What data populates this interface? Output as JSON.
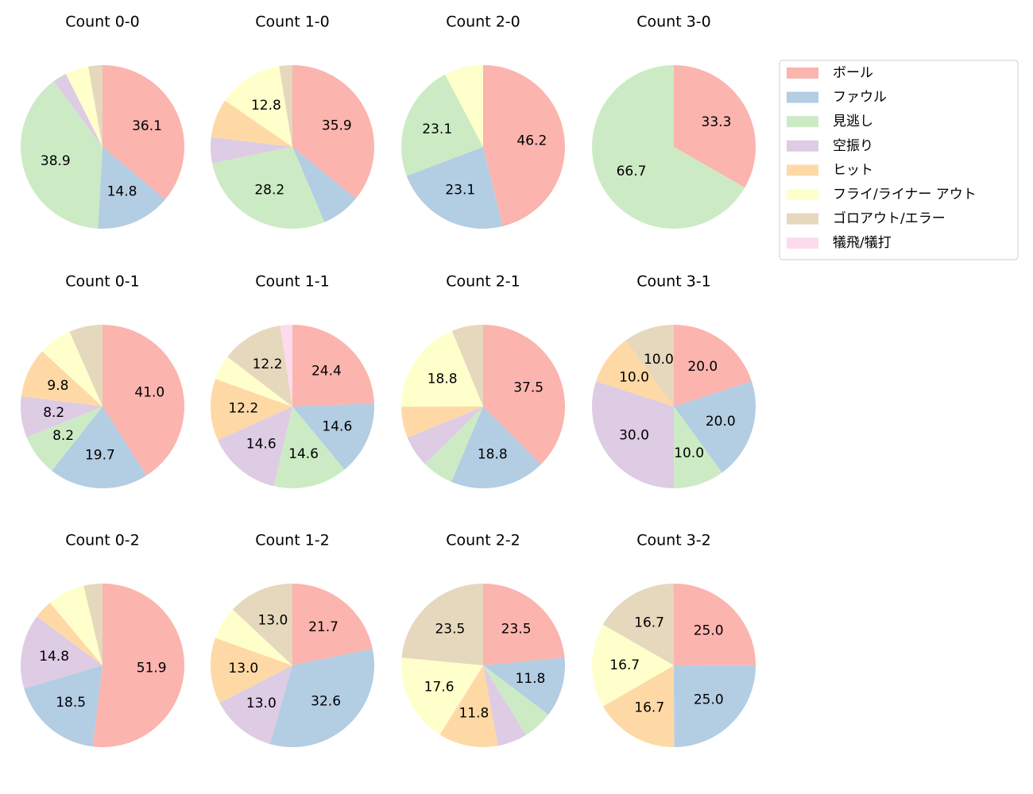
{
  "legend": {
    "labels": [
      "ボール",
      "ファウル",
      "見逃し",
      "空振り",
      "ヒット",
      "フライ/ライナー アウト",
      "ゴロアウト/エラー",
      "犠飛/犠打"
    ],
    "colors": [
      "#fbb4ae",
      "#b3cde3",
      "#ccebc5",
      "#decbe4",
      "#fed9a6",
      "#ffffcc",
      "#e5d8bd",
      "#fddaec"
    ]
  },
  "chart_data": [
    {
      "type": "pie",
      "title": "Count 0-0",
      "values": [
        36.1,
        14.8,
        38.9,
        2.8,
        0,
        4.6,
        2.8,
        0
      ],
      "value_labels": [
        "36.1",
        "14.8",
        "38.9",
        null,
        null,
        null,
        null,
        null
      ]
    },
    {
      "type": "pie",
      "title": "Count 1-0",
      "values": [
        35.9,
        7.7,
        28.2,
        5.1,
        7.7,
        12.8,
        2.6,
        0
      ],
      "value_labels": [
        "35.9",
        null,
        "28.2",
        null,
        null,
        "12.8",
        null,
        null
      ]
    },
    {
      "type": "pie",
      "title": "Count 2-0",
      "values": [
        46.2,
        23.1,
        23.1,
        0,
        0,
        7.7,
        0,
        0
      ],
      "value_labels": [
        "46.2",
        "23.1",
        "23.1",
        null,
        null,
        null,
        null,
        null
      ]
    },
    {
      "type": "pie",
      "title": "Count 3-0",
      "values": [
        33.3,
        0,
        66.7,
        0,
        0,
        0,
        0,
        0
      ],
      "value_labels": [
        "33.3",
        null,
        "66.7",
        null,
        null,
        null,
        null,
        null
      ]
    },
    {
      "type": "pie",
      "title": "Count 0-1",
      "values": [
        41.0,
        19.7,
        8.2,
        8.2,
        9.8,
        6.6,
        6.6,
        0
      ],
      "value_labels": [
        "41.0",
        "19.7",
        "8.2",
        "8.2",
        "9.8",
        null,
        null,
        null
      ]
    },
    {
      "type": "pie",
      "title": "Count 1-1",
      "values": [
        24.4,
        14.6,
        14.6,
        14.6,
        12.2,
        4.9,
        12.2,
        2.4
      ],
      "value_labels": [
        "24.4",
        "14.6",
        "14.6",
        "14.6",
        "12.2",
        null,
        "12.2",
        null
      ]
    },
    {
      "type": "pie",
      "title": "Count 2-1",
      "values": [
        37.5,
        18.8,
        6.2,
        6.2,
        6.2,
        18.8,
        6.2,
        0
      ],
      "value_labels": [
        "37.5",
        "18.8",
        null,
        null,
        null,
        "18.8",
        null,
        null
      ]
    },
    {
      "type": "pie",
      "title": "Count 3-1",
      "values": [
        20,
        20,
        10,
        30,
        10,
        0,
        10,
        0
      ],
      "value_labels": [
        "20.0",
        "20.0",
        "10.0",
        "30.0",
        "10.0",
        null,
        "10.0",
        null
      ]
    },
    {
      "type": "pie",
      "title": "Count 0-2",
      "values": [
        51.9,
        18.5,
        0,
        14.8,
        3.7,
        7.4,
        3.7,
        0
      ],
      "value_labels": [
        "51.9",
        "18.5",
        null,
        "14.8",
        null,
        null,
        null,
        null
      ]
    },
    {
      "type": "pie",
      "title": "Count 1-2",
      "values": [
        21.7,
        32.6,
        0,
        13.0,
        13.0,
        6.5,
        13.0,
        0
      ],
      "value_labels": [
        "21.7",
        "32.6",
        null,
        "13.0",
        "13.0",
        null,
        "13.0",
        null
      ]
    },
    {
      "type": "pie",
      "title": "Count 2-2",
      "values": [
        23.5,
        11.8,
        5.9,
        5.9,
        11.8,
        17.6,
        23.5,
        0
      ],
      "value_labels": [
        "23.5",
        "11.8",
        null,
        null,
        "11.8",
        "17.6",
        "23.5",
        null
      ]
    },
    {
      "type": "pie",
      "title": "Count 3-2",
      "values": [
        25.0,
        25.0,
        0,
        0,
        16.7,
        16.7,
        16.7,
        0
      ],
      "value_labels": [
        "25.0",
        "25.0",
        null,
        null,
        "16.7",
        "16.7",
        "16.7",
        null
      ]
    }
  ]
}
